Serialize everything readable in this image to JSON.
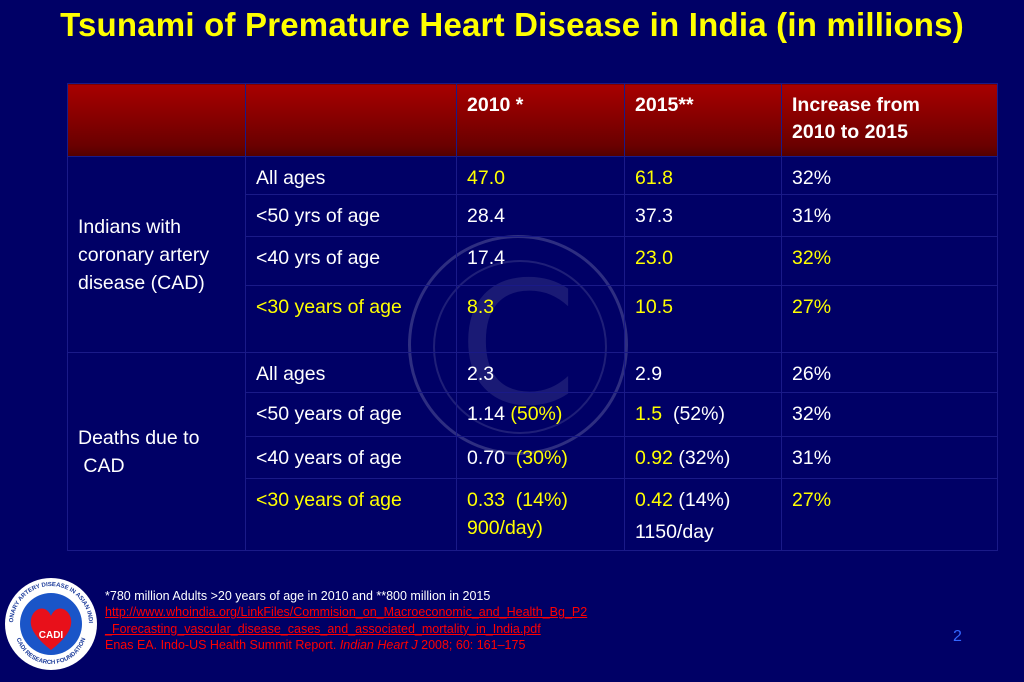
{
  "slide": {
    "title": "Tsunami of Premature Heart Disease in India (in millions)",
    "page_number": "2"
  },
  "table": {
    "headers": [
      "",
      "",
      "2010 *",
      "2015**",
      "Increase from 2010 to 2015"
    ],
    "header_increase_line1": "Increase from",
    "header_increase_line2": "2010 to 2015",
    "group1": {
      "label_line1": "Indians with",
      "label_line2": "coronary artery",
      "label_line3": "disease (CAD)",
      "rows": [
        {
          "age": "All ages",
          "y2010": "47.0",
          "y2015": "61.8",
          "increase": "32%"
        },
        {
          "age": "<50 yrs of age",
          "y2010": "28.4",
          "y2015": "37.3",
          "increase": "31%"
        },
        {
          "age": "<40 yrs of age",
          "y2010": "17.4",
          "y2015": "23.0",
          "increase": "32%"
        },
        {
          "age": "<30 years of age",
          "y2010": "8.3",
          "y2015": "10.5",
          "increase": "27%"
        }
      ]
    },
    "group2": {
      "label_line1": "Deaths due to",
      "label_line2": "CAD",
      "rows": [
        {
          "age": "All ages",
          "y2010": "2.3",
          "y2015": "2.9",
          "increase": "26%"
        },
        {
          "age": "<50 years of age",
          "y2010": "1.14",
          "y2010_pct": "(50%)",
          "y2015": "1.5",
          "y2015_pct": "(52%)",
          "increase": "32%"
        },
        {
          "age": "<40 years of age",
          "y2010": "0.70",
          "y2010_pct": "(30%)",
          "y2015": "0.92",
          "y2015_pct": "(32%)",
          "increase": "31%"
        },
        {
          "age": "<30 years of age",
          "y2010": "0.33",
          "y2010_pct": "(14%)",
          "y2010_extra": "900/day)",
          "y2015": "0.42",
          "y2015_pct": "(14%)",
          "y2015_extra": "1150/day",
          "increase": "27%"
        }
      ]
    }
  },
  "footnote": {
    "line1": "*780 million Adults >20 years of age  in 2010 and **800 million in 2015",
    "link_line1": "http://www.whoindia.org/LinkFiles/Commision_on_Macroeconomic_and_Health_Bg_P2",
    "link_line2": "_Forecasting_vascular_disease_cases_and_associated_mortality_in_India.pdf",
    "ref_prefix": "Enas EA. Indo-US Health Summit Report. ",
    "ref_journal": "Indian Heart J",
    "ref_suffix": " 2008; 60: 161–175"
  },
  "logo": {
    "ring_text_top": "CORONARY ARTERY DISEASE IN ASIAN INDIANS",
    "ring_text_bottom": "CADI RESEARCH FOUNDATION",
    "center_text": "CADI"
  },
  "colors": {
    "background": "#000066",
    "title": "#ffff00",
    "header_red": "#8b0000",
    "highlight_yellow": "#ffff00",
    "reference_red": "#ff0000",
    "page_number": "#3366ff"
  }
}
